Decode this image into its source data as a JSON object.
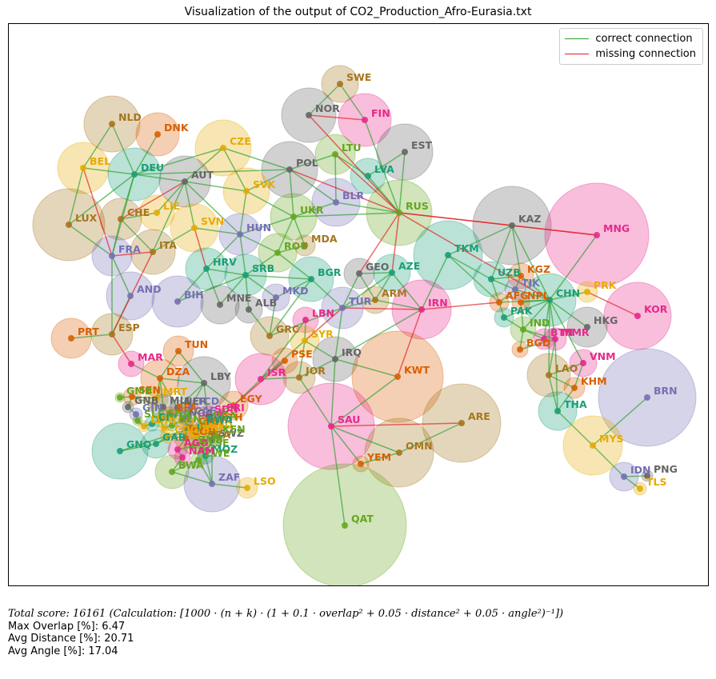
{
  "title": "Visualization of the output of CO2_Production_Afro-Eurasia.txt",
  "legend": [
    {
      "label": "correct connection",
      "color": "#2ca02c"
    },
    {
      "label": "missing connection",
      "color": "#e31a1c"
    }
  ],
  "stats": {
    "score_line": "Total score: 16161  (Calculation: [1000 · (n + k) · (1 + 0.1 · overlap² + 0.05 · distance² + 0.05 · angle²)⁻¹])",
    "max_overlap": "Max Overlap [%]: 6.47",
    "avg_distance": "Avg Distance [%]: 20.71",
    "avg_angle": "Avg Angle [%]: 17.04"
  },
  "colors": {
    "purple": "#7570b3",
    "green": "#1b9e77",
    "orange": "#d95f02",
    "pink": "#e7298a",
    "lime": "#66a61e",
    "yellow": "#e6ab02",
    "brown": "#a6761d",
    "gray": "#666666"
  },
  "nodes": [
    {
      "id": "SWE",
      "color": "brown"
    },
    {
      "id": "NOR",
      "color": "gray"
    },
    {
      "id": "FIN",
      "color": "pink"
    },
    {
      "id": "LTU",
      "color": "lime"
    },
    {
      "id": "EST",
      "color": "gray"
    },
    {
      "id": "LVA",
      "color": "green"
    },
    {
      "id": "NLD",
      "color": "brown"
    },
    {
      "id": "DNK",
      "color": "orange"
    },
    {
      "id": "CZE",
      "color": "yellow"
    },
    {
      "id": "BEL",
      "color": "yellow"
    },
    {
      "id": "DEU",
      "color": "green"
    },
    {
      "id": "AUT",
      "color": "gray"
    },
    {
      "id": "POL",
      "color": "gray"
    },
    {
      "id": "SVK",
      "color": "yellow"
    },
    {
      "id": "BLR",
      "color": "purple"
    },
    {
      "id": "RUS",
      "color": "lime"
    },
    {
      "id": "KAZ",
      "color": "gray"
    },
    {
      "id": "MNG",
      "color": "pink"
    },
    {
      "id": "LUX",
      "color": "brown"
    },
    {
      "id": "CHE",
      "color": "brown"
    },
    {
      "id": "LIE",
      "color": "yellow"
    },
    {
      "id": "SVN",
      "color": "yellow"
    },
    {
      "id": "UKR",
      "color": "lime"
    },
    {
      "id": "HUN",
      "color": "purple"
    },
    {
      "id": "MDA",
      "color": "brown"
    },
    {
      "id": "ITA",
      "color": "brown"
    },
    {
      "id": "FRA",
      "color": "purple"
    },
    {
      "id": "ROU",
      "color": "lime"
    },
    {
      "id": "HRV",
      "color": "green"
    },
    {
      "id": "SRB",
      "color": "green"
    },
    {
      "id": "BGR",
      "color": "green"
    },
    {
      "id": "GEO",
      "color": "gray"
    },
    {
      "id": "AZE",
      "color": "green"
    },
    {
      "id": "TKM",
      "color": "green"
    },
    {
      "id": "UZB",
      "color": "green"
    },
    {
      "id": "KGZ",
      "color": "orange"
    },
    {
      "id": "TJK",
      "color": "purple"
    },
    {
      "id": "CHN",
      "color": "green"
    },
    {
      "id": "PRK",
      "color": "yellow"
    },
    {
      "id": "AND",
      "color": "purple"
    },
    {
      "id": "BIH",
      "color": "purple"
    },
    {
      "id": "MNE",
      "color": "gray"
    },
    {
      "id": "ALB",
      "color": "gray"
    },
    {
      "id": "MKD",
      "color": "purple"
    },
    {
      "id": "ARM",
      "color": "brown"
    },
    {
      "id": "TUR",
      "color": "purple"
    },
    {
      "id": "IRN",
      "color": "pink"
    },
    {
      "id": "AFG",
      "color": "orange"
    },
    {
      "id": "NPL",
      "color": "orange"
    },
    {
      "id": "PAK",
      "color": "green"
    },
    {
      "id": "KOR",
      "color": "pink"
    },
    {
      "id": "HKG",
      "color": "gray"
    },
    {
      "id": "LBN",
      "color": "pink"
    },
    {
      "id": "GRC",
      "color": "brown"
    },
    {
      "id": "IND",
      "color": "lime"
    },
    {
      "id": "BTN",
      "color": "pink"
    },
    {
      "id": "BGD",
      "color": "orange"
    },
    {
      "id": "MMR",
      "color": "pink"
    },
    {
      "id": "PRT",
      "color": "orange"
    },
    {
      "id": "ESP",
      "color": "brown"
    },
    {
      "id": "TUN",
      "color": "orange"
    },
    {
      "id": "SYR",
      "color": "yellow"
    },
    {
      "id": "PSE",
      "color": "orange"
    },
    {
      "id": "IRQ",
      "color": "gray"
    },
    {
      "id": "VNM",
      "color": "pink"
    },
    {
      "id": "MAR",
      "color": "pink"
    },
    {
      "id": "DZA",
      "color": "orange"
    },
    {
      "id": "LBY",
      "color": "gray"
    },
    {
      "id": "ISR",
      "color": "pink"
    },
    {
      "id": "JOR",
      "color": "brown"
    },
    {
      "id": "KWT",
      "color": "orange"
    },
    {
      "id": "LAO",
      "color": "brown"
    },
    {
      "id": "KHM",
      "color": "orange"
    },
    {
      "id": "BRN",
      "color": "purple"
    },
    {
      "id": "SEN",
      "color": "orange"
    },
    {
      "id": "MRT",
      "color": "yellow"
    },
    {
      "id": "GMB",
      "color": "lime"
    },
    {
      "id": "GNB",
      "color": "gray"
    },
    {
      "id": "MLI",
      "color": "gray"
    },
    {
      "id": "EGY",
      "color": "orange"
    },
    {
      "id": "THA",
      "color": "green"
    },
    {
      "id": "ARE",
      "color": "brown"
    },
    {
      "id": "SAU",
      "color": "pink"
    },
    {
      "id": "GAB",
      "color": "green"
    },
    {
      "id": "MWI",
      "color": "yellow"
    },
    {
      "id": "SWZ",
      "color": "gray"
    },
    {
      "id": "MYS",
      "color": "yellow"
    },
    {
      "id": "GNQ",
      "color": "green"
    },
    {
      "id": "AGO",
      "color": "pink"
    },
    {
      "id": "OMN",
      "color": "brown"
    },
    {
      "id": "YEM",
      "color": "orange"
    },
    {
      "id": "LSE",
      "color": "lime"
    },
    {
      "id": "BWA",
      "color": "lime"
    },
    {
      "id": "ZAF",
      "color": "purple"
    },
    {
      "id": "LSO",
      "color": "yellow"
    },
    {
      "id": "IDN",
      "color": "purple"
    },
    {
      "id": "PNG",
      "color": "gray"
    },
    {
      "id": "TLS",
      "color": "yellow"
    },
    {
      "id": "QAT",
      "color": "lime"
    },
    {
      "id": "CMR",
      "color": "orange"
    },
    {
      "id": "NGA",
      "color": "gray"
    },
    {
      "id": "SDN",
      "color": "pink"
    },
    {
      "id": "ERI",
      "color": "pink"
    },
    {
      "id": "ETH",
      "color": "orange"
    },
    {
      "id": "SSD",
      "color": "yellow"
    },
    {
      "id": "KEN",
      "color": "lime"
    },
    {
      "id": "CAF",
      "color": "purple"
    },
    {
      "id": "COD",
      "color": "orange"
    },
    {
      "id": "COG",
      "color": "yellow"
    },
    {
      "id": "NER",
      "color": "gray"
    },
    {
      "id": "TCD",
      "color": "purple"
    },
    {
      "id": "UGA",
      "color": "lime"
    },
    {
      "id": "RWA",
      "color": "green"
    },
    {
      "id": "BDI",
      "color": "yellow"
    },
    {
      "id": "TZA",
      "color": "brown"
    },
    {
      "id": "ZMB",
      "color": "lime"
    },
    {
      "id": "MOZ",
      "color": "green"
    },
    {
      "id": "ZWE",
      "color": "lime"
    },
    {
      "id": "GIN",
      "color": "purple"
    },
    {
      "id": "SLE",
      "color": "lime"
    },
    {
      "id": "LBR",
      "color": "yellow"
    },
    {
      "id": "CIV",
      "color": "green"
    },
    {
      "id": "GHA",
      "color": "lime"
    },
    {
      "id": "BFA",
      "color": "orange"
    },
    {
      "id": "TGO",
      "color": "yellow"
    },
    {
      "id": "BEN",
      "color": "lime"
    },
    {
      "id": "NAM",
      "color": "pink"
    }
  ],
  "edges": [
    [
      "SWE",
      "NOR",
      "correct"
    ],
    [
      "SWE",
      "FIN",
      "correct"
    ],
    [
      "NOR",
      "FIN",
      "missing"
    ],
    [
      "FIN",
      "RUS",
      "correct"
    ],
    [
      "NOR",
      "RUS",
      "missing"
    ],
    [
      "LTU",
      "POL",
      "correct"
    ],
    [
      "LTU",
      "LVA",
      "correct"
    ],
    [
      "LTU",
      "BLR",
      "correct"
    ],
    [
      "LTU",
      "RUS",
      "missing"
    ],
    [
      "LVA",
      "EST",
      "correct"
    ],
    [
      "LVA",
      "RUS",
      "correct"
    ],
    [
      "EST",
      "RUS",
      "correct"
    ],
    [
      "NLD",
      "DEU",
      "correct"
    ],
    [
      "NLD",
      "BEL",
      "correct"
    ],
    [
      "DNK",
      "DEU",
      "correct"
    ],
    [
      "BEL",
      "DEU",
      "correct"
    ],
    [
      "BEL",
      "LUX",
      "correct"
    ],
    [
      "BEL",
      "FRA",
      "missing"
    ],
    [
      "DEU",
      "CZE",
      "correct"
    ],
    [
      "DEU",
      "AUT",
      "correct"
    ],
    [
      "DEU",
      "POL",
      "correct"
    ],
    [
      "DEU",
      "FRA",
      "correct"
    ],
    [
      "DEU",
      "LUX",
      "correct"
    ],
    [
      "DEU",
      "CHE",
      "correct"
    ],
    [
      "CZE",
      "AUT",
      "correct"
    ],
    [
      "CZE",
      "POL",
      "correct"
    ],
    [
      "CZE",
      "SVK",
      "correct"
    ],
    [
      "AUT",
      "SVK",
      "correct"
    ],
    [
      "AUT",
      "HUN",
      "correct"
    ],
    [
      "AUT",
      "SVN",
      "correct"
    ],
    [
      "AUT",
      "ITA",
      "correct"
    ],
    [
      "AUT",
      "CHE",
      "missing"
    ],
    [
      "AUT",
      "LIE",
      "correct"
    ],
    [
      "POL",
      "SVK",
      "correct"
    ],
    [
      "POL",
      "BLR",
      "correct"
    ],
    [
      "POL",
      "UKR",
      "correct"
    ],
    [
      "POL",
      "RUS",
      "missing"
    ],
    [
      "SVK",
      "HUN",
      "correct"
    ],
    [
      "SVK",
      "UKR",
      "correct"
    ],
    [
      "BLR",
      "UKR",
      "correct"
    ],
    [
      "BLR",
      "RUS",
      "correct"
    ],
    [
      "RUS",
      "UKR",
      "correct"
    ],
    [
      "RUS",
      "KAZ",
      "missing"
    ],
    [
      "RUS",
      "GEO",
      "missing"
    ],
    [
      "RUS",
      "AZE",
      "missing"
    ],
    [
      "RUS",
      "MNG",
      "missing"
    ],
    [
      "RUS",
      "CHN",
      "missing"
    ],
    [
      "KAZ",
      "CHN",
      "correct"
    ],
    [
      "KAZ",
      "UZB",
      "correct"
    ],
    [
      "KAZ",
      "TKM",
      "correct"
    ],
    [
      "KAZ",
      "KGZ",
      "correct"
    ],
    [
      "KAZ",
      "MNG",
      "missing"
    ],
    [
      "MNG",
      "CHN",
      "correct"
    ],
    [
      "LUX",
      "FRA",
      "correct"
    ],
    [
      "CHE",
      "FRA",
      "correct"
    ],
    [
      "CHE",
      "ITA",
      "correct"
    ],
    [
      "CHE",
      "LIE",
      "correct"
    ],
    [
      "SVN",
      "ITA",
      "correct"
    ],
    [
      "SVN",
      "HRV",
      "missing"
    ],
    [
      "SVN",
      "HUN",
      "correct"
    ],
    [
      "UKR",
      "HUN",
      "correct"
    ],
    [
      "UKR",
      "ROU",
      "correct"
    ],
    [
      "UKR",
      "MDA",
      "correct"
    ],
    [
      "HUN",
      "ROU",
      "correct"
    ],
    [
      "HUN",
      "HRV",
      "correct"
    ],
    [
      "HUN",
      "SRB",
      "correct"
    ],
    [
      "ROU",
      "MDA",
      "correct"
    ],
    [
      "ROU",
      "SRB",
      "correct"
    ],
    [
      "ROU",
      "BGR",
      "correct"
    ],
    [
      "FRA",
      "ITA",
      "missing"
    ],
    [
      "FRA",
      "AND",
      "correct"
    ],
    [
      "FRA",
      "ESP",
      "correct"
    ],
    [
      "HRV",
      "SRB",
      "correct"
    ],
    [
      "HRV",
      "BIH",
      "correct"
    ],
    [
      "HRV",
      "MNE",
      "correct"
    ],
    [
      "SRB",
      "BIH",
      "correct"
    ],
    [
      "SRB",
      "MNE",
      "correct"
    ],
    [
      "SRB",
      "BGR",
      "correct"
    ],
    [
      "SRB",
      "MKD",
      "correct"
    ],
    [
      "SRB",
      "ALB",
      "correct"
    ],
    [
      "BGR",
      "MKD",
      "correct"
    ],
    [
      "BGR",
      "GRC",
      "correct"
    ],
    [
      "BGR",
      "TUR",
      "correct"
    ],
    [
      "GEO",
      "AZE",
      "correct"
    ],
    [
      "GEO",
      "ARM",
      "correct"
    ],
    [
      "GEO",
      "TUR",
      "correct"
    ],
    [
      "AZE",
      "ARM",
      "correct"
    ],
    [
      "AZE",
      "TUR",
      "correct"
    ],
    [
      "AZE",
      "IRN",
      "correct"
    ],
    [
      "ARM",
      "TUR",
      "correct"
    ],
    [
      "ARM",
      "IRN",
      "correct"
    ],
    [
      "TUR",
      "IRN",
      "missing"
    ],
    [
      "TUR",
      "GRC",
      "correct"
    ],
    [
      "TUR",
      "SYR",
      "missing"
    ],
    [
      "TUR",
      "IRQ",
      "correct"
    ],
    [
      "TKM",
      "IRN",
      "correct"
    ],
    [
      "TKM",
      "UZB",
      "correct"
    ],
    [
      "TKM",
      "AFG",
      "correct"
    ],
    [
      "UZB",
      "KGZ",
      "correct"
    ],
    [
      "UZB",
      "TJK",
      "correct"
    ],
    [
      "UZB",
      "AFG",
      "correct"
    ],
    [
      "KGZ",
      "TJK",
      "correct"
    ],
    [
      "KGZ",
      "CHN",
      "correct"
    ],
    [
      "TJK",
      "CHN",
      "correct"
    ],
    [
      "TJK",
      "AFG",
      "correct"
    ],
    [
      "AFG",
      "PAK",
      "correct"
    ],
    [
      "AFG",
      "IRN",
      "missing"
    ],
    [
      "AFG",
      "CHN",
      "correct"
    ],
    [
      "CHN",
      "PRK",
      "correct"
    ],
    [
      "CHN",
      "HKG",
      "correct"
    ],
    [
      "CHN",
      "PAK",
      "correct"
    ],
    [
      "CHN",
      "IND",
      "correct"
    ],
    [
      "CHN",
      "NPL",
      "correct"
    ],
    [
      "CHN",
      "BTN",
      "correct"
    ],
    [
      "CHN",
      "MMR",
      "correct"
    ],
    [
      "CHN",
      "LAO",
      "correct"
    ],
    [
      "CHN",
      "VNM",
      "correct"
    ],
    [
      "PRK",
      "KOR",
      "missing"
    ],
    [
      "IND",
      "PAK",
      "correct"
    ],
    [
      "IND",
      "NPL",
      "correct"
    ],
    [
      "IND",
      "BTN",
      "correct"
    ],
    [
      "IND",
      "BGD",
      "correct"
    ],
    [
      "IND",
      "MMR",
      "correct"
    ],
    [
      "MMR",
      "BGD",
      "correct"
    ],
    [
      "MMR",
      "LAO",
      "correct"
    ],
    [
      "MMR",
      "THA",
      "correct"
    ],
    [
      "LAO",
      "VNM",
      "correct"
    ],
    [
      "LAO",
      "KHM",
      "correct"
    ],
    [
      "LAO",
      "THA",
      "correct"
    ],
    [
      "KHM",
      "VNM",
      "correct"
    ],
    [
      "KHM",
      "THA",
      "correct"
    ],
    [
      "THA",
      "MYS",
      "correct"
    ],
    [
      "MYS",
      "BRN",
      "correct"
    ],
    [
      "MYS",
      "IDN",
      "correct"
    ],
    [
      "IDN",
      "PNG",
      "correct"
    ],
    [
      "IDN",
      "TLS",
      "correct"
    ],
    [
      "AND",
      "ESP",
      "correct"
    ],
    [
      "ESP",
      "PRT",
      "correct"
    ],
    [
      "ESP",
      "MAR",
      "missing"
    ],
    [
      "ESP",
      "ITA",
      "missing"
    ],
    [
      "MAR",
      "DZA",
      "correct"
    ],
    [
      "DZA",
      "TUN",
      "correct"
    ],
    [
      "DZA",
      "LBY",
      "correct"
    ],
    [
      "DZA",
      "MRT",
      "correct"
    ],
    [
      "DZA",
      "MLI",
      "correct"
    ],
    [
      "DZA",
      "NER",
      "correct"
    ],
    [
      "TUN",
      "LBY",
      "correct"
    ],
    [
      "LBY",
      "EGY",
      "correct"
    ],
    [
      "LBY",
      "TCD",
      "correct"
    ],
    [
      "LBY",
      "NER",
      "correct"
    ],
    [
      "LBY",
      "SDN",
      "correct"
    ],
    [
      "EGY",
      "ISR",
      "correct"
    ],
    [
      "EGY",
      "SDN",
      "correct"
    ],
    [
      "EGY",
      "PSE",
      "missing"
    ],
    [
      "GRC",
      "ALB",
      "correct"
    ],
    [
      "GRC",
      "MKD",
      "correct"
    ],
    [
      "LBN",
      "SYR",
      "correct"
    ],
    [
      "LBN",
      "ISR",
      "correct"
    ],
    [
      "SYR",
      "ISR",
      "correct"
    ],
    [
      "SYR",
      "JOR",
      "correct"
    ],
    [
      "SYR",
      "IRQ",
      "correct"
    ],
    [
      "ISR",
      "JOR",
      "correct"
    ],
    [
      "ISR",
      "PSE",
      "correct"
    ],
    [
      "JOR",
      "IRQ",
      "correct"
    ],
    [
      "JOR",
      "SAU",
      "correct"
    ],
    [
      "IRQ",
      "IRN",
      "correct"
    ],
    [
      "IRQ",
      "KWT",
      "correct"
    ],
    [
      "IRQ",
      "SAU",
      "correct"
    ],
    [
      "KWT",
      "SAU",
      "correct"
    ],
    [
      "KWT",
      "IRN",
      "missing"
    ],
    [
      "SAU",
      "ARE",
      "missing"
    ],
    [
      "SAU",
      "OMN",
      "correct"
    ],
    [
      "SAU",
      "YEM",
      "correct"
    ],
    [
      "SAU",
      "QAT",
      "correct"
    ],
    [
      "OMN",
      "YEM",
      "correct"
    ],
    [
      "OMN",
      "ARE",
      "correct"
    ],
    [
      "GNQ",
      "CMR",
      "correct"
    ],
    [
      "GNQ",
      "GAB",
      "correct"
    ],
    [
      "GAB",
      "COG",
      "correct"
    ],
    [
      "GAB",
      "CMR",
      "correct"
    ],
    [
      "AGO",
      "NAM",
      "correct"
    ],
    [
      "AGO",
      "ZMB",
      "correct"
    ],
    [
      "AGO",
      "COD",
      "correct"
    ],
    [
      "NAM",
      "BWA",
      "correct"
    ],
    [
      "BWA",
      "ZAF",
      "correct"
    ],
    [
      "BWA",
      "ZWE",
      "correct"
    ],
    [
      "ZAF",
      "LSO",
      "correct"
    ],
    [
      "ZAF",
      "SWZ",
      "correct"
    ],
    [
      "ZAF",
      "MOZ",
      "correct"
    ],
    [
      "ZAF",
      "ZWE",
      "correct"
    ],
    [
      "MOZ",
      "SWZ",
      "correct"
    ],
    [
      "MOZ",
      "MWI",
      "correct"
    ],
    [
      "TZA",
      "MWI",
      "correct"
    ],
    [
      "TZA",
      "ZMB",
      "correct"
    ],
    [
      "SEN",
      "GMB",
      "correct"
    ],
    [
      "SEN",
      "GNB",
      "correct"
    ],
    [
      "SEN",
      "MRT",
      "correct"
    ],
    [
      "SEN",
      "MLI",
      "correct"
    ],
    [
      "GNB",
      "GIN",
      "correct"
    ],
    [
      "GIN",
      "SLE",
      "correct"
    ],
    [
      "SLE",
      "LBR",
      "correct"
    ],
    [
      "LBR",
      "CIV",
      "correct"
    ],
    [
      "CIV",
      "GHA",
      "correct"
    ],
    [
      "GHA",
      "TGO",
      "correct"
    ],
    [
      "TGO",
      "BEN",
      "correct"
    ],
    [
      "BEN",
      "NGA",
      "correct"
    ],
    [
      "NGA",
      "CMR",
      "correct"
    ],
    [
      "NGA",
      "NER",
      "correct"
    ],
    [
      "SDN",
      "ERI",
      "correct"
    ],
    [
      "SDN",
      "ETH",
      "correct"
    ],
    [
      "SDN",
      "SSD",
      "correct"
    ],
    [
      "SSD",
      "KEN",
      "correct"
    ],
    [
      "SSD",
      "UGA",
      "correct"
    ],
    [
      "UGA",
      "RWA",
      "correct"
    ],
    [
      "RWA",
      "BDI",
      "correct"
    ],
    [
      "BDI",
      "TZA",
      "correct"
    ],
    [
      "CAF",
      "TCD",
      "correct"
    ],
    [
      "CAF",
      "COD",
      "correct"
    ],
    [
      "COD",
      "COG",
      "correct"
    ],
    [
      "MLI",
      "BFA",
      "correct"
    ],
    [
      "BFA",
      "GHA",
      "correct"
    ],
    [
      "NER",
      "TCD",
      "correct"
    ]
  ]
}
